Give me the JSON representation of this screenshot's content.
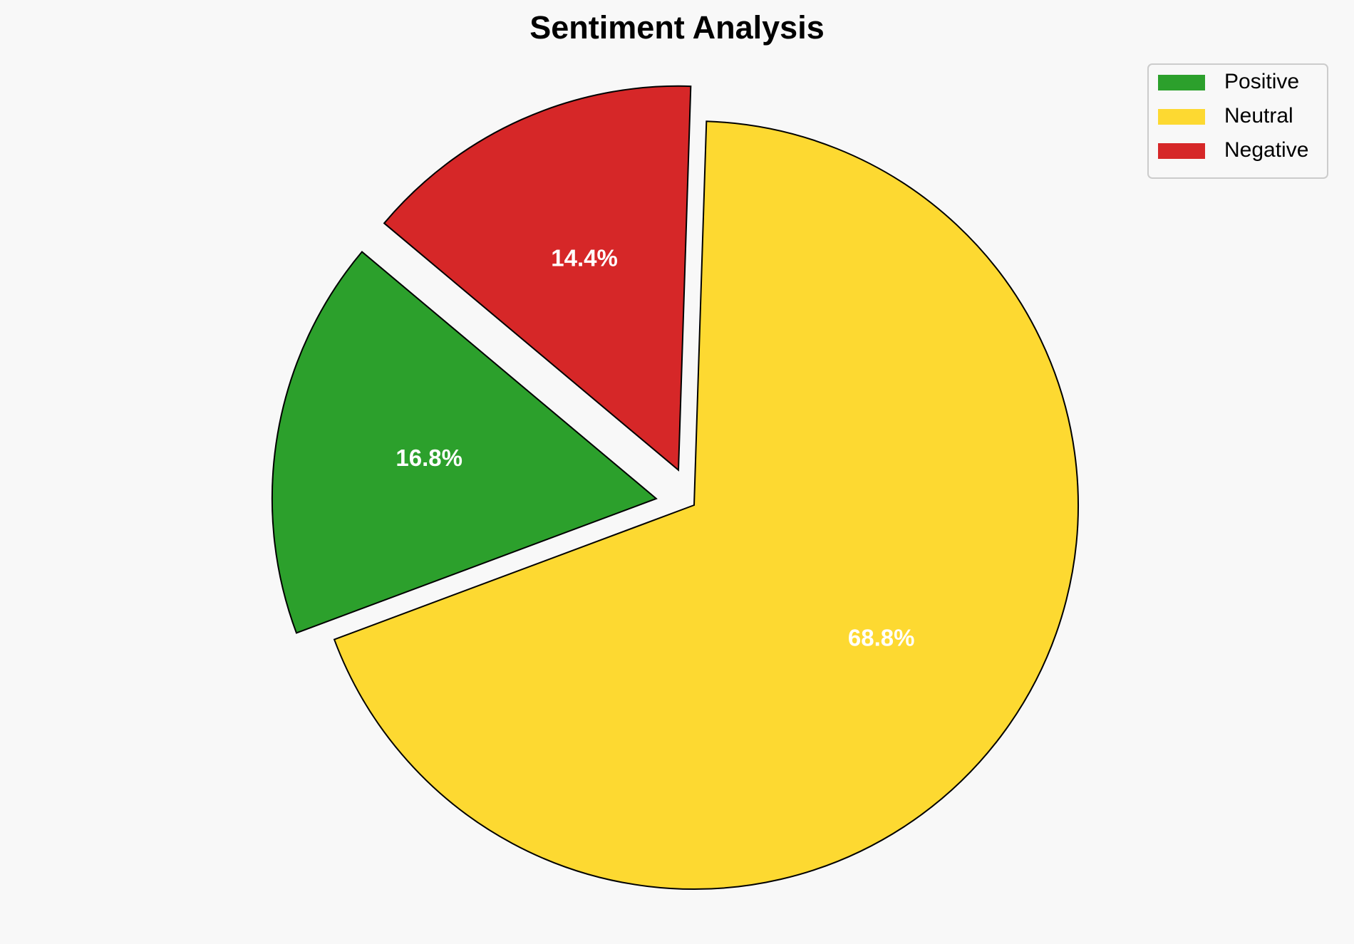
{
  "chart_data": {
    "type": "pie",
    "title": "Sentiment Analysis",
    "categories": [
      "Positive",
      "Neutral",
      "Negative"
    ],
    "values": [
      16.8,
      68.8,
      14.4
    ],
    "value_labels": [
      "16.8%",
      "68.8%",
      "14.4%"
    ],
    "colors": [
      "#2ca02c",
      "#fdd931",
      "#d62728"
    ],
    "explode": [
      0.1,
      0,
      0.1
    ],
    "startangle": 140,
    "legend": "upper right"
  }
}
